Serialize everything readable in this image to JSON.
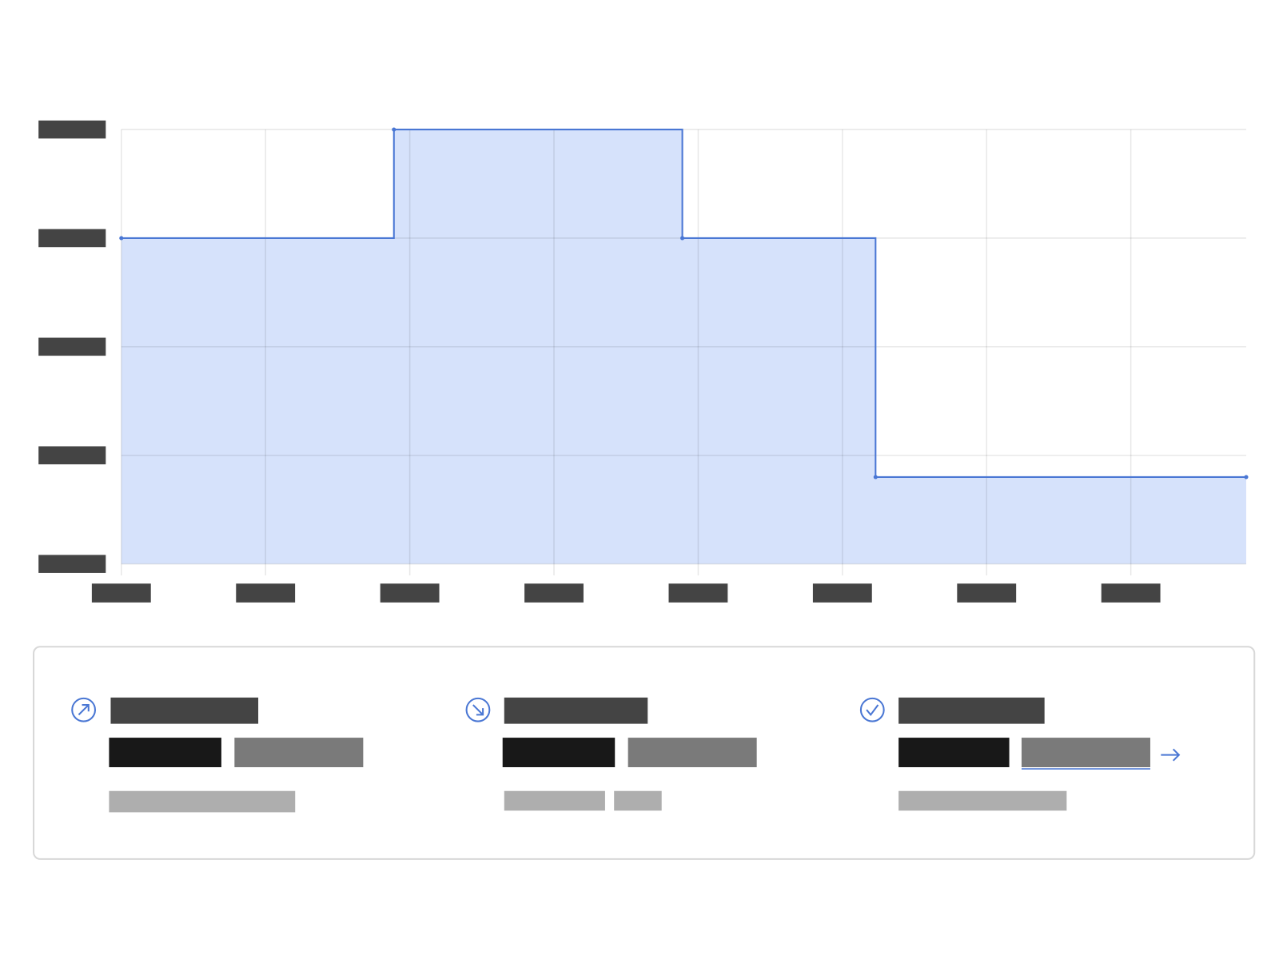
{
  "chart_data": {
    "type": "step",
    "x": [
      0,
      1.89,
      3.89,
      5.23,
      7.8
    ],
    "values": [
      3,
      4,
      3,
      0.8,
      0.8
    ],
    "color": "#4a77d4",
    "fill": "#d6e2fb",
    "xlim": [
      0,
      7.8
    ],
    "xticks": [
      0,
      1,
      2,
      3,
      4,
      5,
      6,
      7
    ],
    "ylim": [
      0,
      4
    ],
    "yticks": [
      0,
      1,
      2,
      3,
      4
    ],
    "grid": true
  }
}
